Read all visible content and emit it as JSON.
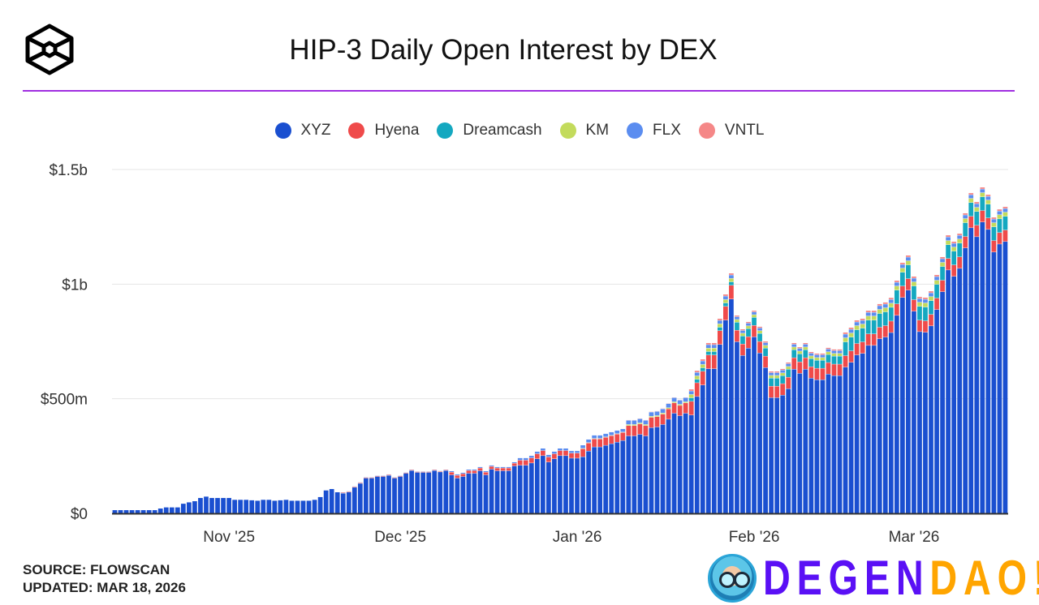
{
  "header": {
    "title": "HIP-3 Daily Open Interest by DEX"
  },
  "footer": {
    "source": "SOURCE: FLOWSCAN",
    "updated": "UPDATED: MAR 18, 2026"
  },
  "watermark": {
    "part1": "DEGEN",
    "part2": "DAO!"
  },
  "chart_data": {
    "type": "bar",
    "stacked": true,
    "title": "HIP-3 Daily Open Interest by DEX",
    "xlabel": "",
    "ylabel": "",
    "unit": "millions USD",
    "start_date": "2025-10-12",
    "end_date": "2026-03-17",
    "ylim": [
      0,
      1500
    ],
    "yticks": [
      {
        "value": 0,
        "label": "$0"
      },
      {
        "value": 500,
        "label": "$500m"
      },
      {
        "value": 1000,
        "label": "$1b"
      },
      {
        "value": 1500,
        "label": "$1.5b"
      }
    ],
    "xticks": [
      {
        "day": 20,
        "label": "Nov '25"
      },
      {
        "day": 50,
        "label": "Dec '25"
      },
      {
        "day": 81,
        "label": "Jan '26"
      },
      {
        "day": 112,
        "label": "Feb '26"
      },
      {
        "day": 140,
        "label": "Mar '26"
      }
    ],
    "grid": true,
    "legend_position": "top-center",
    "series": [
      {
        "name": "XYZ",
        "color": "#1a4fd0",
        "values": [
          14,
          14,
          14,
          14,
          14,
          14,
          14,
          14,
          21,
          26,
          26,
          26,
          42,
          48,
          53,
          67,
          73,
          67,
          67,
          67,
          67,
          59,
          59,
          59,
          57,
          55,
          59,
          59,
          55,
          57,
          59,
          55,
          55,
          55,
          55,
          59,
          71,
          100,
          106,
          92,
          87,
          92,
          113,
          130,
          153,
          153,
          160,
          160,
          165,
          153,
          160,
          174,
          186,
          178,
          178,
          178,
          186,
          180,
          186,
          167,
          153,
          160,
          174,
          174,
          185,
          167,
          192,
          185,
          185,
          185,
          206,
          209,
          209,
          219,
          237,
          251,
          223,
          237,
          251,
          251,
          240,
          240,
          246,
          271,
          289,
          289,
          296,
          303,
          310,
          317,
          337,
          337,
          344,
          337,
          373,
          376,
          387,
          410,
          436,
          425,
          436,
          428,
          509,
          559,
          630,
          630,
          736,
          842,
          934,
          748,
          688,
          720,
          769,
          699,
          635,
          504,
          504,
          515,
          543,
          628,
          610,
          628,
          589,
          582,
          582,
          607,
          600,
          600,
          637,
          658,
          690,
          697,
          732,
          732,
          761,
          768,
          788,
          863,
          941,
          973,
          881,
          792,
          789,
          817,
          888,
          966,
          1061,
          1033,
          1068,
          1157,
          1245,
          1206,
          1270,
          1238,
          1139,
          1174,
          1185
        ]
      },
      {
        "name": "Hyena",
        "color": "#ef4a4a",
        "values": [
          0,
          0,
          0,
          0,
          0,
          0,
          0,
          0,
          0,
          0,
          0,
          0,
          0,
          0,
          0,
          0,
          0,
          0,
          0,
          0,
          0,
          0,
          0,
          0,
          0,
          0,
          0,
          0,
          0,
          0,
          0,
          0,
          0,
          0,
          0,
          0,
          0,
          0,
          0,
          0,
          3,
          3,
          3,
          3,
          3,
          3,
          3,
          3,
          3,
          3,
          3,
          3,
          3,
          3,
          3,
          3,
          3,
          3,
          3,
          12,
          12,
          12,
          12,
          12,
          12,
          12,
          12,
          12,
          12,
          12,
          12,
          22,
          22,
          22,
          22,
          22,
          22,
          22,
          22,
          22,
          22,
          22,
          35,
          35,
          35,
          35,
          35,
          35,
          35,
          35,
          45,
          45,
          45,
          45,
          45,
          45,
          45,
          45,
          45,
          45,
          45,
          60,
          60,
          60,
          60,
          60,
          60,
          60,
          60,
          50,
          50,
          50,
          50,
          50,
          50,
          50,
          50,
          50,
          50,
          50,
          50,
          50,
          50,
          50,
          50,
          50,
          50,
          50,
          50,
          50,
          50,
          50,
          50,
          50,
          50,
          50,
          50,
          50,
          50,
          50,
          50,
          50,
          50,
          50,
          50,
          50,
          50,
          50,
          50,
          50,
          50,
          50,
          50,
          50,
          50,
          50,
          50
        ]
      },
      {
        "name": "Dreamcash",
        "color": "#14a8c0",
        "values": [
          0,
          0,
          0,
          0,
          0,
          0,
          0,
          0,
          0,
          0,
          0,
          0,
          0,
          0,
          0,
          0,
          0,
          0,
          0,
          0,
          0,
          0,
          0,
          0,
          0,
          0,
          0,
          0,
          0,
          0,
          0,
          0,
          0,
          0,
          0,
          0,
          0,
          0,
          0,
          0,
          0,
          0,
          0,
          0,
          0,
          0,
          0,
          0,
          0,
          0,
          0,
          0,
          0,
          0,
          0,
          0,
          0,
          0,
          0,
          0,
          0,
          0,
          0,
          0,
          0,
          0,
          0,
          0,
          0,
          0,
          0,
          0,
          0,
          0,
          0,
          0,
          0,
          0,
          0,
          0,
          0,
          0,
          0,
          0,
          0,
          0,
          0,
          0,
          0,
          0,
          0,
          0,
          0,
          0,
          0,
          0,
          0,
          0,
          0,
          0,
          0,
          15,
          15,
          15,
          15,
          15,
          15,
          15,
          15,
          35,
          35,
          35,
          35,
          35,
          35,
          35,
          35,
          35,
          35,
          35,
          35,
          35,
          35,
          35,
          35,
          35,
          35,
          35,
          60,
          60,
          60,
          60,
          60,
          60,
          60,
          60,
          60,
          60,
          60,
          60,
          60,
          60,
          60,
          60,
          60,
          60,
          60,
          60,
          60,
          60,
          60,
          60,
          60,
          60,
          60,
          60,
          60
        ]
      },
      {
        "name": "KM",
        "color": "#c3db5c",
        "values": [
          0,
          0,
          0,
          0,
          0,
          0,
          0,
          0,
          0,
          0,
          0,
          0,
          0,
          0,
          0,
          0,
          0,
          0,
          0,
          0,
          0,
          0,
          0,
          0,
          0,
          0,
          0,
          0,
          0,
          0,
          0,
          0,
          0,
          0,
          0,
          0,
          0,
          0,
          0,
          0,
          0,
          0,
          0,
          0,
          0,
          0,
          0,
          0,
          0,
          0,
          0,
          0,
          0,
          0,
          0,
          0,
          0,
          0,
          0,
          0,
          0,
          0,
          0,
          0,
          0,
          0,
          0,
          0,
          0,
          0,
          0,
          0,
          0,
          0,
          0,
          0,
          0,
          0,
          0,
          0,
          0,
          0,
          2,
          2,
          2,
          2,
          2,
          2,
          2,
          2,
          5,
          5,
          5,
          5,
          5,
          5,
          5,
          5,
          5,
          5,
          5,
          15,
          15,
          15,
          15,
          15,
          15,
          15,
          15,
          12,
          12,
          12,
          12,
          12,
          12,
          12,
          12,
          12,
          12,
          12,
          12,
          12,
          12,
          12,
          12,
          12,
          12,
          12,
          18,
          18,
          18,
          18,
          18,
          18,
          18,
          18,
          18,
          18,
          18,
          18,
          18,
          18,
          18,
          18,
          18,
          18,
          18,
          18,
          18,
          18,
          18,
          18,
          18,
          18,
          18,
          18,
          18
        ]
      },
      {
        "name": "FLX",
        "color": "#5b8df0",
        "values": [
          0,
          0,
          0,
          0,
          0,
          0,
          0,
          0,
          0,
          0,
          0,
          0,
          0,
          0,
          0,
          0,
          0,
          0,
          0,
          0,
          0,
          0,
          0,
          0,
          0,
          0,
          0,
          0,
          0,
          0,
          0,
          0,
          0,
          0,
          0,
          0,
          0,
          0,
          0,
          0,
          2,
          2,
          2,
          2,
          2,
          2,
          2,
          2,
          2,
          2,
          2,
          2,
          2,
          2,
          2,
          2,
          2,
          2,
          2,
          5,
          5,
          5,
          5,
          5,
          5,
          5,
          5,
          5,
          5,
          5,
          5,
          10,
          10,
          10,
          10,
          10,
          10,
          10,
          10,
          10,
          10,
          10,
          14,
          14,
          14,
          14,
          14,
          14,
          14,
          14,
          18,
          18,
          18,
          18,
          18,
          18,
          18,
          18,
          18,
          18,
          18,
          15,
          15,
          15,
          15,
          15,
          15,
          15,
          15,
          12,
          12,
          12,
          12,
          12,
          12,
          12,
          12,
          12,
          12,
          12,
          12,
          12,
          12,
          12,
          12,
          12,
          12,
          12,
          16,
          16,
          16,
          16,
          16,
          16,
          16,
          16,
          16,
          16,
          16,
          16,
          16,
          16,
          16,
          16,
          16,
          16,
          16,
          16,
          16,
          16,
          16,
          16,
          16,
          16,
          16,
          16,
          16
        ]
      },
      {
        "name": "VNTL",
        "color": "#f58787",
        "values": [
          0,
          0,
          0,
          0,
          0,
          0,
          0,
          0,
          0,
          0,
          0,
          0,
          0,
          0,
          0,
          0,
          0,
          0,
          0,
          0,
          0,
          0,
          0,
          0,
          0,
          0,
          0,
          0,
          0,
          0,
          0,
          0,
          0,
          0,
          0,
          0,
          0,
          0,
          0,
          0,
          0,
          0,
          0,
          0,
          0,
          0,
          0,
          0,
          0,
          0,
          0,
          0,
          0,
          0,
          0,
          0,
          0,
          0,
          0,
          0,
          0,
          0,
          0,
          0,
          0,
          0,
          0,
          0,
          0,
          0,
          0,
          0,
          0,
          0,
          0,
          0,
          0,
          0,
          0,
          0,
          0,
          0,
          0,
          0,
          0,
          0,
          0,
          0,
          0,
          0,
          2,
          2,
          2,
          2,
          2,
          2,
          2,
          2,
          2,
          2,
          2,
          8,
          8,
          8,
          8,
          8,
          8,
          8,
          8,
          6,
          6,
          6,
          6,
          6,
          6,
          6,
          6,
          6,
          6,
          6,
          6,
          6,
          6,
          6,
          6,
          6,
          6,
          6,
          8,
          8,
          8,
          8,
          8,
          8,
          8,
          8,
          8,
          8,
          8,
          8,
          8,
          8,
          8,
          8,
          8,
          8,
          8,
          8,
          8,
          8,
          8,
          8,
          8,
          8,
          8,
          8,
          8
        ]
      }
    ]
  }
}
